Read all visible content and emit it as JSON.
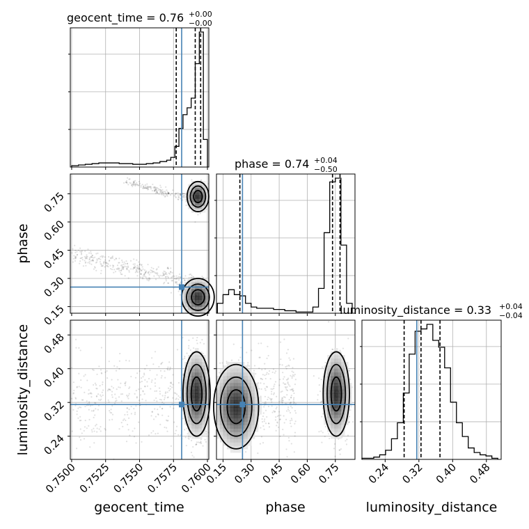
{
  "chart_data": {
    "type": "corner",
    "parameters": [
      "geocent_time",
      "phase",
      "luminosity_distance"
    ],
    "truth": {
      "geocent_time": 0.7581,
      "phase": 0.254,
      "luminosity_distance": 0.315
    },
    "titles": [
      {
        "name": "geocent_time",
        "value": "0.76",
        "plus": "+0.00",
        "minus": "−0.00"
      },
      {
        "name": "phase",
        "value": "0.74",
        "plus": "+0.04",
        "minus": "−0.50"
      },
      {
        "name": "luminosity_distance",
        "value": "0.33",
        "plus": "+0.04",
        "minus": "−0.04"
      }
    ],
    "axis_labels": [
      "geocent_time",
      "phase",
      "luminosity_distance"
    ],
    "ranges": {
      "geocent_time": [
        0.7499,
        0.7601
      ],
      "phase": [
        0.115,
        0.855
      ],
      "luminosity_distance": [
        0.185,
        0.515
      ]
    },
    "ticks": {
      "geocent_time": [
        "0.7500",
        "0.7525",
        "0.7550",
        "0.7575",
        "0.7600"
      ],
      "phase": [
        "0.15",
        "0.30",
        "0.45",
        "0.60",
        "0.75"
      ],
      "luminosity_distance": [
        "0.24",
        "0.32",
        "0.40",
        "0.48"
      ]
    },
    "quantiles": {
      "geocent_time": [
        0.7577,
        0.7591,
        0.7595
      ],
      "phase": [
        0.24,
        0.735,
        0.775
      ],
      "luminosity_distance": [
        0.285,
        0.325,
        0.37
      ]
    },
    "histograms": {
      "geocent_time": {
        "edges": [
          0.75,
          0.7505,
          0.751,
          0.7515,
          0.752,
          0.7525,
          0.753,
          0.7535,
          0.754,
          0.7545,
          0.755,
          0.7555,
          0.756,
          0.7565,
          0.757,
          0.7573,
          0.7576,
          0.7579,
          0.7582,
          0.7585,
          0.7588,
          0.7591,
          0.7594,
          0.7597,
          0.76
        ],
        "counts": [
          1,
          1.5,
          2,
          2.5,
          3,
          3,
          3,
          2.5,
          2.5,
          2,
          2,
          2.5,
          3,
          4,
          5,
          7,
          15,
          28,
          38,
          43,
          50,
          75,
          98,
          20
        ]
      },
      "phase": {
        "edges": [
          0.12,
          0.15,
          0.18,
          0.21,
          0.24,
          0.27,
          0.3,
          0.33,
          0.36,
          0.39,
          0.42,
          0.45,
          0.48,
          0.51,
          0.54,
          0.57,
          0.6,
          0.63,
          0.66,
          0.69,
          0.72,
          0.75,
          0.78,
          0.81,
          0.84
        ],
        "counts": [
          8,
          15,
          19,
          15,
          14,
          8,
          5,
          4,
          4,
          4,
          3,
          3,
          2,
          2,
          1,
          1,
          1,
          5,
          20,
          65,
          106,
          109,
          55,
          8
        ]
      },
      "luminosity_distance": {
        "edges": [
          0.185,
          0.199,
          0.213,
          0.227,
          0.241,
          0.255,
          0.269,
          0.283,
          0.297,
          0.311,
          0.325,
          0.339,
          0.353,
          0.367,
          0.381,
          0.395,
          0.409,
          0.423,
          0.437,
          0.451,
          0.465,
          0.479,
          0.493,
          0.507
        ],
        "counts": [
          0.5,
          0.5,
          1,
          2,
          4,
          9,
          16,
          29,
          46,
          56,
          57,
          59,
          52,
          49,
          40,
          25,
          16,
          10,
          5,
          3,
          2,
          1.5,
          0.5
        ]
      }
    },
    "contour_panels": [
      {
        "x": "geocent_time",
        "y": "phase",
        "density_peaks": [
          {
            "x": 0.7593,
            "y": 0.735,
            "sx": 0.0004,
            "sy": 0.04
          },
          {
            "x": 0.7593,
            "y": 0.2,
            "sx": 0.0006,
            "sy": 0.05
          }
        ]
      },
      {
        "x": "geocent_time",
        "y": "luminosity_distance",
        "density_peaks": [
          {
            "x": 0.7592,
            "y": 0.34,
            "sx": 0.0005,
            "sy": 0.05
          }
        ]
      },
      {
        "x": "phase",
        "y": "luminosity_distance",
        "density_peaks": [
          {
            "x": 0.755,
            "y": 0.34,
            "sx": 0.035,
            "sy": 0.05
          },
          {
            "x": 0.22,
            "y": 0.31,
            "sx": 0.06,
            "sy": 0.05
          }
        ]
      }
    ],
    "grid": true,
    "truth_color": "#4682b4",
    "line_color": "#000000"
  }
}
